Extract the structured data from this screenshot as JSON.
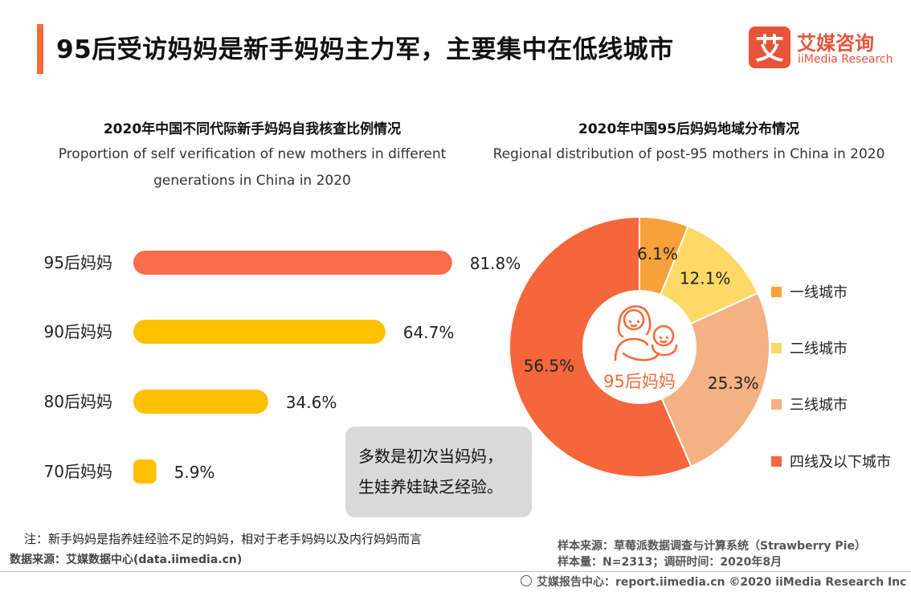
{
  "header": {
    "title": "95后受访妈妈是新手妈妈主力军，主要集中在低线城市",
    "logo_name": "艾媒咨询",
    "logo_en": "iiMedia Research",
    "logo_glyph": "艾"
  },
  "chart_data": [
    {
      "type": "bar",
      "orientation": "horizontal",
      "title": "2020年中国不同代际新手妈妈自我核查比例情况",
      "subtitle": "Proportion of self verification of new mothers in different generations in China in 2020",
      "categories": [
        "95后妈妈",
        "90后妈妈",
        "80后妈妈",
        "70后妈妈"
      ],
      "values": [
        81.8,
        64.7,
        34.6,
        5.9
      ],
      "value_labels": [
        "81.8%",
        "64.7%",
        "34.6%",
        "5.9%"
      ],
      "colors": [
        "#f96d4b",
        "#ffc000",
        "#ffc000",
        "#ffc000"
      ],
      "xlim": [
        0,
        100
      ],
      "grid": false
    },
    {
      "type": "pie",
      "donut": true,
      "title": "2020年中国95后妈妈地域分布情况",
      "subtitle": "Regional distribution of post-95 mothers in China in 2020",
      "center_label": "95后妈妈",
      "categories": [
        "一线城市",
        "二线城市",
        "三线城市",
        "四线及以下城市"
      ],
      "values": [
        6.1,
        12.1,
        25.3,
        56.5
      ],
      "value_labels": [
        "6.1%",
        "12.1%",
        "25.3%",
        "56.5%"
      ],
      "colors": [
        "#f8a13a",
        "#ffd966",
        "#f4b183",
        "#f5673a"
      ],
      "legend_position": "right"
    }
  ],
  "callout": {
    "line1": "多数是初次当妈妈，",
    "line2": "生娃养娃缺乏经验。"
  },
  "footnotes": {
    "note": "注：新手妈妈是指养娃经验不足的妈妈，相对于老手妈妈以及内行妈妈而言",
    "data_source": "数据来源：艾媒数据中心(data.iimedia.cn)",
    "sample_source": "样本来源：草莓派数据调查与计算系统（Strawberry Pie）",
    "sample_size": "样本量：N=2313；调研时间：2020年8月",
    "footer": "艾媒报告中心：report.iimedia.cn  ©2020  iiMedia Research  Inc"
  }
}
